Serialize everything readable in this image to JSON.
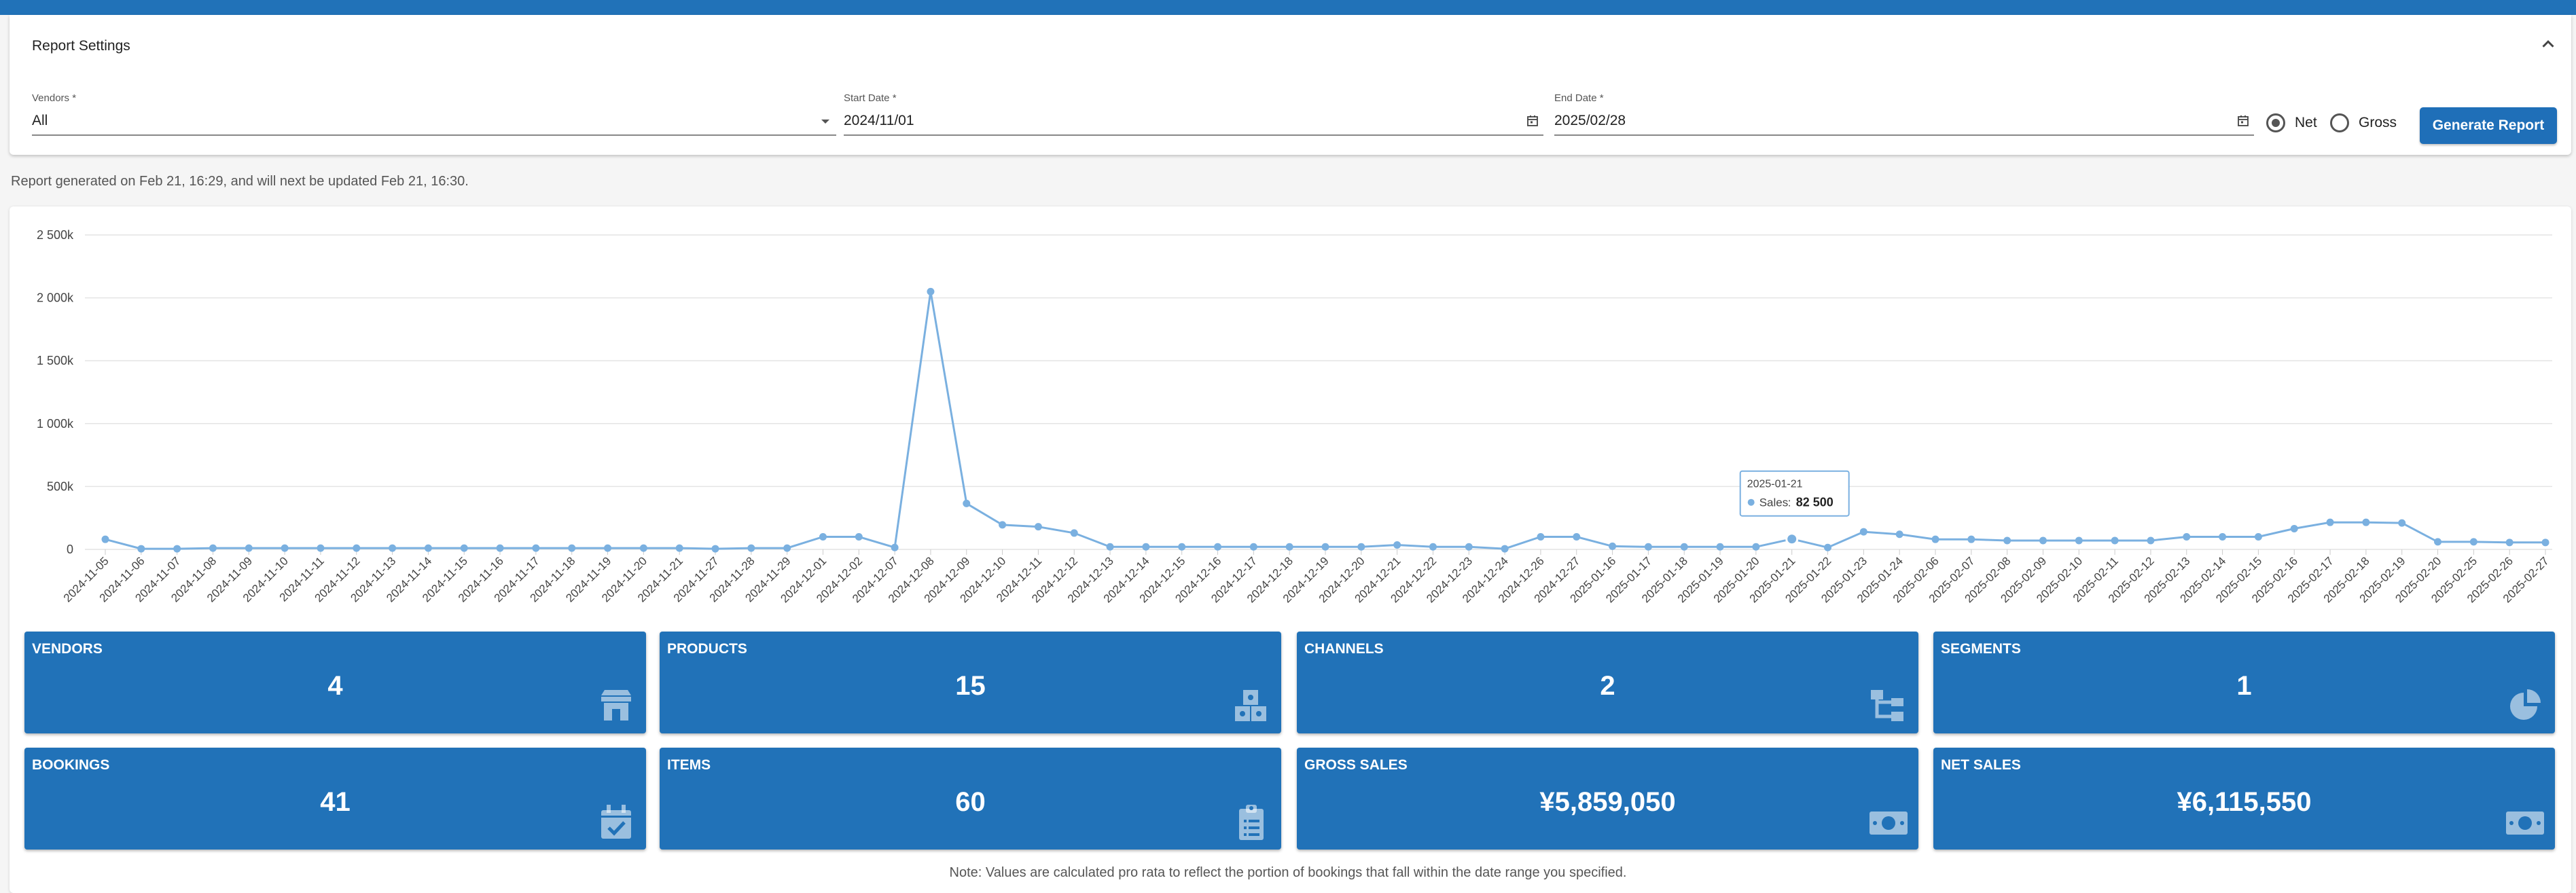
{
  "settings": {
    "title": "Report Settings",
    "vendors_label": "Vendors *",
    "vendors_value": "All",
    "start_label": "Start Date *",
    "start_value": "2024/11/01",
    "end_label": "End Date *",
    "end_value": "2025/02/28",
    "net_label": "Net",
    "gross_label": "Gross",
    "selected_mode": "Net",
    "generate_label": "Generate Report"
  },
  "notice": "Report generated on Feb 21, 16:29, and will next be updated Feb 21, 16:30.",
  "chart_data": {
    "type": "line",
    "title": "",
    "xlabel": "",
    "ylabel": "",
    "ylim": [
      0,
      2500000
    ],
    "y_ticks": [
      "0",
      "500k",
      "1 000k",
      "1 500k",
      "2 000k",
      "2 500k"
    ],
    "grid": true,
    "line_color": "#7ab0e0",
    "categories": [
      "2024-11-05",
      "2024-11-06",
      "2024-11-07",
      "2024-11-08",
      "2024-11-09",
      "2024-11-10",
      "2024-11-11",
      "2024-11-12",
      "2024-11-13",
      "2024-11-14",
      "2024-11-15",
      "2024-11-16",
      "2024-11-17",
      "2024-11-18",
      "2024-11-19",
      "2024-11-20",
      "2024-11-21",
      "2024-11-27",
      "2024-11-28",
      "2024-11-29",
      "2024-12-01",
      "2024-12-02",
      "2024-12-07",
      "2024-12-08",
      "2024-12-09",
      "2024-12-10",
      "2024-12-11",
      "2024-12-12",
      "2024-12-13",
      "2024-12-14",
      "2024-12-15",
      "2024-12-16",
      "2024-12-17",
      "2024-12-18",
      "2024-12-19",
      "2024-12-20",
      "2024-12-21",
      "2024-12-22",
      "2024-12-23",
      "2024-12-24",
      "2024-12-26",
      "2024-12-27",
      "2025-01-16",
      "2025-01-17",
      "2025-01-18",
      "2025-01-19",
      "2025-01-20",
      "2025-01-21",
      "2025-01-22",
      "2025-01-23",
      "2025-01-24",
      "2025-02-06",
      "2025-02-07",
      "2025-02-08",
      "2025-02-09",
      "2025-02-10",
      "2025-02-11",
      "2025-02-12",
      "2025-02-13",
      "2025-02-14",
      "2025-02-15",
      "2025-02-16",
      "2025-02-17",
      "2025-02-18",
      "2025-02-19",
      "2025-02-20",
      "2025-02-25",
      "2025-02-26",
      "2025-02-27"
    ],
    "series": [
      {
        "name": "Sales",
        "values": [
          80000,
          5000,
          5000,
          10000,
          10000,
          10000,
          10000,
          10000,
          10000,
          10000,
          10000,
          10000,
          10000,
          10000,
          10000,
          10000,
          10000,
          5000,
          10000,
          10000,
          100000,
          100000,
          15000,
          2050000,
          365000,
          195000,
          180000,
          130000,
          20000,
          20000,
          20000,
          20000,
          20000,
          20000,
          20000,
          20000,
          35000,
          20000,
          20000,
          5000,
          100000,
          100000,
          25000,
          20000,
          20000,
          20000,
          20000,
          82500,
          15000,
          140000,
          120000,
          80000,
          80000,
          70000,
          70000,
          70000,
          70000,
          70000,
          100000,
          100000,
          100000,
          165000,
          215000,
          215000,
          210000,
          60000,
          60000,
          55000,
          55000
        ]
      }
    ],
    "tooltip": {
      "date": "2025-01-21",
      "series": "Sales",
      "value": "82 500"
    }
  },
  "tiles": [
    {
      "label": "Vendors",
      "value": "4",
      "icon": "store-icon"
    },
    {
      "label": "Products",
      "value": "15",
      "icon": "cubes-icon"
    },
    {
      "label": "Channels",
      "value": "2",
      "icon": "sitemap-icon"
    },
    {
      "label": "Segments",
      "value": "1",
      "icon": "pie-chart-icon"
    },
    {
      "label": "Bookings",
      "value": "41",
      "icon": "calendar-check-icon"
    },
    {
      "label": "Items",
      "value": "60",
      "icon": "clipboard-list-icon"
    },
    {
      "label": "Gross Sales",
      "value": "¥5,859,050",
      "icon": "money-bill-icon"
    },
    {
      "label": "Net Sales",
      "value": "¥6,115,550",
      "icon": "money-bill-icon"
    }
  ],
  "footnote": "Note: Values are calculated pro rata to reflect the portion of bookings that fall within the date range you specified."
}
